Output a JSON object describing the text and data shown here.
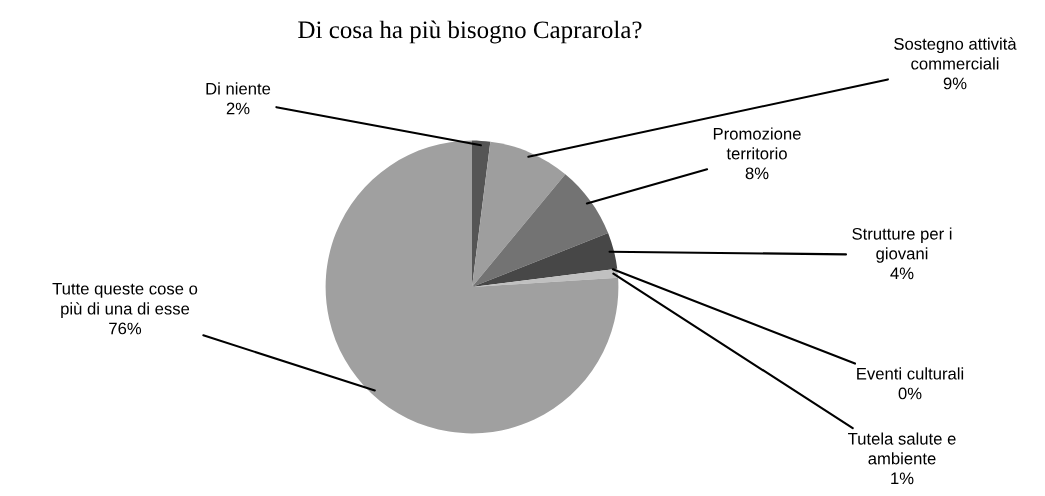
{
  "chart_data": {
    "type": "pie",
    "title": "Di cosa ha più bisogno Caprarola?",
    "categories": [
      "Di niente",
      "Sostegno attività commerciali",
      "Promozione territorio",
      "Strutture per i giovani",
      "Eventi culturali",
      "Tutela salute e ambiente",
      "Tutte queste cose o più di una di esse"
    ],
    "values": [
      2,
      9,
      8,
      4,
      0,
      1,
      76
    ],
    "colors": [
      "#555555",
      "#9e9e9e",
      "#737373",
      "#474747",
      "#888888",
      "#c0c0c0",
      "#a0a0a0"
    ],
    "value_labels": [
      "2%",
      "9%",
      "8%",
      "4%",
      "0%",
      "1%",
      "76%"
    ],
    "legend": false
  }
}
